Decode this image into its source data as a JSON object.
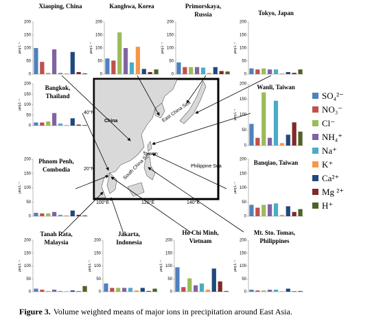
{
  "chart_data": [
    {
      "type": "bar",
      "title": [
        "Xiaoping, China"
      ],
      "ylabel": "µeq L⁻¹",
      "values": [
        100,
        47,
        5,
        95,
        5,
        3,
        85,
        8,
        3
      ],
      "ylim": [
        0,
        200
      ],
      "yticks": [
        0,
        50,
        100,
        150,
        200
      ]
    },
    {
      "type": "bar",
      "title": [
        "Kanghwa, Korea"
      ],
      "ylabel": "µeq L⁻¹",
      "values": [
        60,
        52,
        160,
        100,
        45,
        105,
        20,
        8,
        18
      ],
      "ylim": [
        0,
        200
      ],
      "yticks": [
        0,
        50,
        100,
        150,
        200
      ]
    },
    {
      "type": "bar",
      "title": [
        "Primorskaya,",
        "Russia"
      ],
      "ylabel": "µeq L⁻¹",
      "values": [
        45,
        27,
        27,
        27,
        25,
        5,
        27,
        12,
        10
      ],
      "ylim": [
        0,
        200
      ],
      "yticks": [
        0,
        50,
        100,
        150,
        200
      ]
    },
    {
      "type": "bar",
      "title": [
        "Tokyo, Japan"
      ],
      "ylabel": "µeq L⁻¹",
      "values": [
        22,
        18,
        22,
        18,
        18,
        3,
        8,
        5,
        18
      ],
      "ylim": [
        0,
        200
      ],
      "yticks": [
        0,
        50,
        100,
        150,
        200
      ]
    },
    {
      "type": "bar",
      "title": [
        "Bangkok,",
        "Thailand"
      ],
      "ylabel": "µeq L⁻¹",
      "values": [
        15,
        15,
        20,
        60,
        10,
        3,
        35,
        5,
        3
      ],
      "ylim": [
        0,
        200
      ],
      "yticks": [
        0,
        50,
        100,
        150,
        200
      ]
    },
    {
      "type": "bar",
      "title": [
        "Wanli, Taiwan"
      ],
      "ylabel": "µeq L⁻¹",
      "values": [
        70,
        25,
        172,
        25,
        145,
        8,
        35,
        75,
        45
      ],
      "ylim": [
        0,
        200
      ],
      "yticks": [
        0,
        50,
        100,
        150,
        200
      ]
    },
    {
      "type": "bar",
      "title": [
        "Phnom Penh,",
        "Combodia"
      ],
      "ylabel": "µeq L⁻¹",
      "values": [
        12,
        10,
        10,
        15,
        5,
        3,
        20,
        5,
        3
      ],
      "ylim": [
        0,
        200
      ],
      "yticks": [
        0,
        50,
        100,
        150,
        200
      ]
    },
    {
      "type": "bar",
      "title": [
        "Banqiao, Taiwan"
      ],
      "ylabel": "µeq L⁻¹",
      "values": [
        40,
        30,
        40,
        42,
        45,
        5,
        35,
        15,
        25
      ],
      "ylim": [
        0,
        200
      ],
      "yticks": [
        0,
        50,
        100,
        150,
        200
      ]
    },
    {
      "type": "bar",
      "title": [
        "Tanah Rata,",
        "Malaysia"
      ],
      "ylabel": "µeq L⁻¹",
      "values": [
        12,
        8,
        3,
        8,
        3,
        2,
        5,
        2,
        22
      ],
      "ylim": [
        0,
        200
      ],
      "yticks": [
        0,
        50,
        100,
        150,
        200
      ]
    },
    {
      "type": "bar",
      "title": [
        "Jakarta,",
        "Indonesia"
      ],
      "ylabel": "µeq L⁻¹",
      "values": [
        32,
        15,
        15,
        15,
        15,
        5,
        15,
        3,
        12
      ],
      "ylim": [
        0,
        200
      ],
      "yticks": [
        0,
        50,
        100,
        150,
        200
      ]
    },
    {
      "type": "bar",
      "title": [
        "Ho Chi Minh,",
        "Vietnam"
      ],
      "ylabel": "µeq L⁻¹",
      "values": [
        95,
        18,
        52,
        25,
        32,
        8,
        90,
        40,
        3
      ],
      "ylim": [
        0,
        200
      ],
      "yticks": [
        0,
        50,
        100,
        150,
        200
      ]
    },
    {
      "type": "bar",
      "title": [
        "Mt. Sto. Tomas,",
        "Philippines"
      ],
      "ylabel": "µeq L⁻¹",
      "values": [
        8,
        5,
        5,
        8,
        8,
        2,
        12,
        2,
        3
      ],
      "ylim": [
        0,
        200
      ],
      "yticks": [
        0,
        50,
        100,
        150,
        200
      ]
    }
  ],
  "legend": {
    "labels": [
      "SO₄²⁻",
      "NO₃⁻",
      "Cl⁻",
      "NH₄⁺",
      "Na⁺",
      "K⁺",
      "Ca²⁺",
      "Mg ²⁺",
      "H⁺"
    ],
    "colors": [
      "#4f81bd",
      "#c0504d",
      "#9bbb59",
      "#8064a2",
      "#4bacc6",
      "#f79646",
      "#1f497d",
      "#7f2a26",
      "#4f6228"
    ]
  },
  "map": {
    "labels": [
      "China",
      "East China Sea",
      "South China Sea",
      "Philippine Sea",
      "40°N",
      "20°N",
      "100°E",
      "120°E",
      "140°E",
      "Taiwan"
    ]
  },
  "caption": {
    "label": "Figure 3.",
    "text": "Volume weighted means of major ions in precipitation around East Asia."
  }
}
